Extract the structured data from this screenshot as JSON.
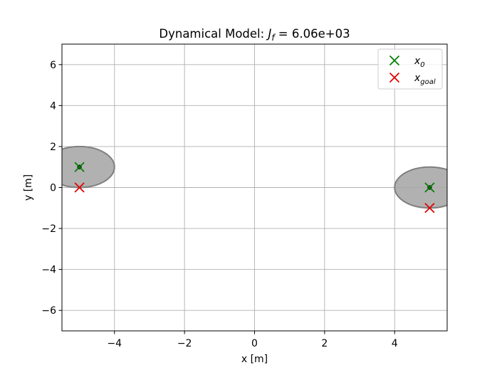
{
  "chart_data": {
    "type": "scatter",
    "title": {
      "prefix": "Dynamical Model: ",
      "symbol": "J",
      "subscript": "f",
      "suffix": " = 6.06e+03"
    },
    "xlabel": "x [m]",
    "ylabel": "y [m]",
    "xlim": [
      -5.5,
      5.5
    ],
    "ylim": [
      -7,
      7
    ],
    "xticks": [
      -4,
      -2,
      0,
      2,
      4
    ],
    "yticks": [
      -6,
      -4,
      -2,
      0,
      2,
      4,
      6
    ],
    "grid": true,
    "legend": {
      "placement": "top-right",
      "entries": [
        {
          "base": "x",
          "sub": "0",
          "color": "#008000",
          "marker": "x-marker"
        },
        {
          "base": "x",
          "sub": "goal",
          "color": "#e00000",
          "marker": "x-marker"
        }
      ]
    },
    "agents": [
      {
        "x0": [
          -5,
          1
        ],
        "goal": [
          -5,
          0
        ],
        "ellipse": {
          "center": [
            -5,
            1
          ],
          "rx": 1,
          "ry": 1
        }
      },
      {
        "x0": [
          5,
          0
        ],
        "goal": [
          5,
          -1
        ],
        "ellipse": {
          "center": [
            5,
            0
          ],
          "rx": 1,
          "ry": 1
        }
      }
    ],
    "colors": {
      "x0": "#008000",
      "goal": "#e00000",
      "ellipse_fill": "#a9a9a9",
      "ellipse_stroke": "#7f7f7f",
      "grid": "#b0b0b0",
      "center_dot": "#1a1a1a"
    }
  }
}
